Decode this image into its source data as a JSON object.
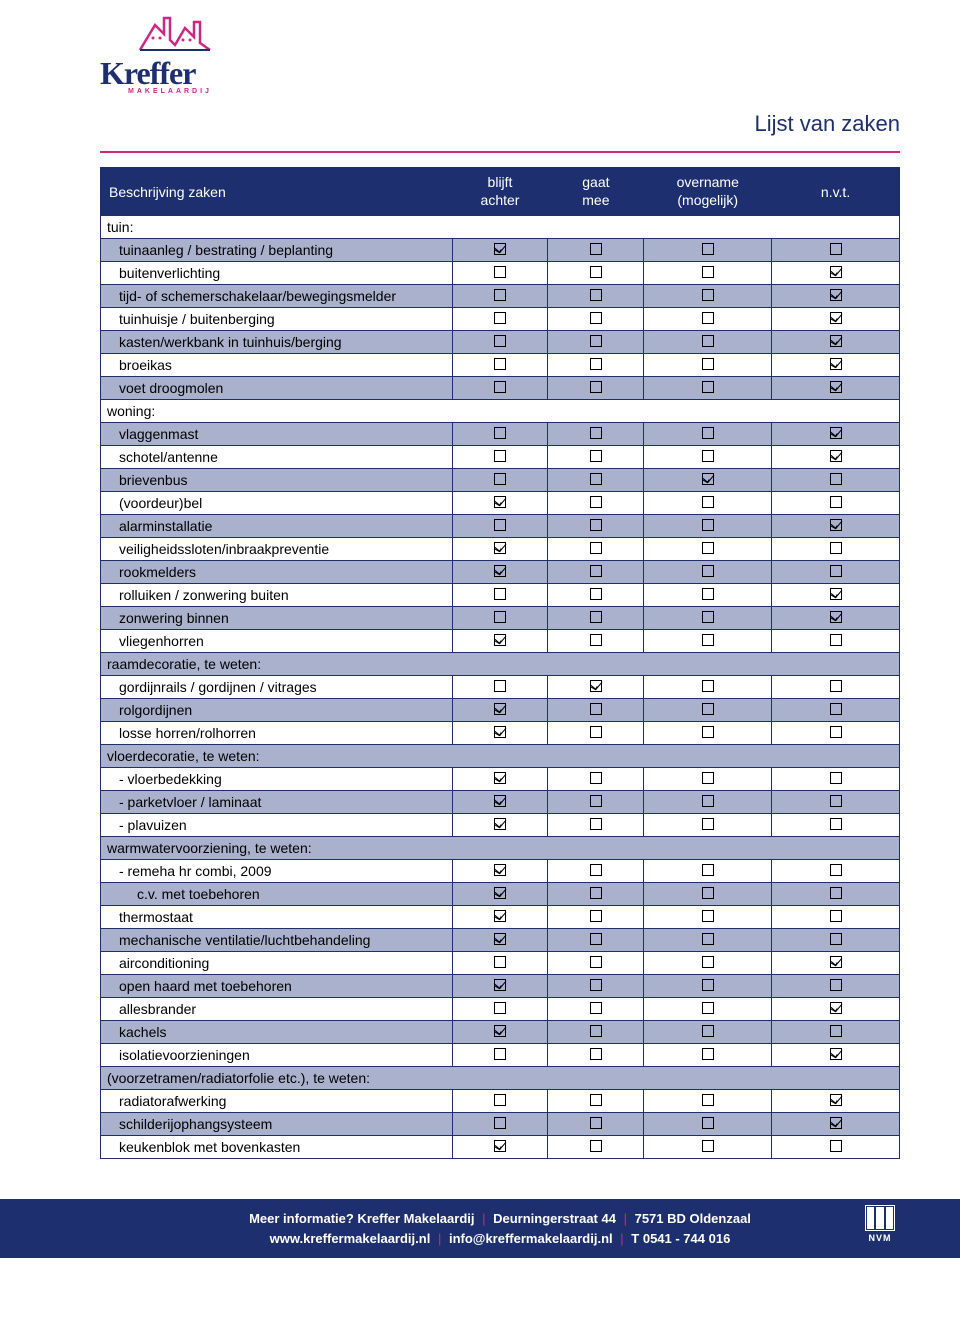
{
  "logo": {
    "name": "Kreffer",
    "sub": "MAKELAARDIJ"
  },
  "page_title": "Lijst van zaken",
  "colors": {
    "navy": "#1e2f6f",
    "magenta": "#ce2783",
    "bluegrey": "#a9b1cc",
    "white": "#ffffff"
  },
  "table": {
    "headers": {
      "desc": "Beschrijving zaken",
      "c1a": "blijft",
      "c1b": "achter",
      "c2a": "gaat",
      "c2b": "mee",
      "c3a": "overname",
      "c3b": "(mogelijk)",
      "c4": "n.v.t."
    },
    "rows": [
      {
        "type": "cat",
        "label": "tuin:",
        "shade": "w"
      },
      {
        "type": "item",
        "label": "tuinaanleg / bestrating / beplanting",
        "shade": "b",
        "v": [
          "x",
          "o",
          "o",
          "o"
        ]
      },
      {
        "type": "item",
        "label": "buitenverlichting",
        "shade": "w",
        "v": [
          "o",
          "o",
          "o",
          "x"
        ]
      },
      {
        "type": "item",
        "label": "tijd- of schemerschakelaar/bewegingsmelder",
        "shade": "b",
        "v": [
          "o",
          "o",
          "o",
          "x"
        ]
      },
      {
        "type": "item",
        "label": "tuinhuisje / buitenberging",
        "shade": "w",
        "v": [
          "o",
          "o",
          "o",
          "x"
        ]
      },
      {
        "type": "item",
        "label": "kasten/werkbank in tuinhuis/berging",
        "shade": "b",
        "v": [
          "o",
          "o",
          "o",
          "x"
        ]
      },
      {
        "type": "item",
        "label": "broeikas",
        "shade": "w",
        "v": [
          "o",
          "o",
          "o",
          "x"
        ]
      },
      {
        "type": "item",
        "label": "voet droogmolen",
        "shade": "b",
        "v": [
          "o",
          "o",
          "o",
          "x"
        ]
      },
      {
        "type": "cat",
        "label": "woning:",
        "shade": "w"
      },
      {
        "type": "item",
        "label": "vlaggenmast",
        "shade": "b",
        "v": [
          "o",
          "o",
          "o",
          "x"
        ]
      },
      {
        "type": "item",
        "label": "schotel/antenne",
        "shade": "w",
        "v": [
          "o",
          "o",
          "o",
          "x"
        ]
      },
      {
        "type": "item",
        "label": "brievenbus",
        "shade": "b",
        "v": [
          "o",
          "o",
          "x",
          "o"
        ]
      },
      {
        "type": "item",
        "label": "(voordeur)bel",
        "shade": "w",
        "v": [
          "x",
          "o",
          "o",
          "o"
        ]
      },
      {
        "type": "item",
        "label": "alarminstallatie",
        "shade": "b",
        "v": [
          "o",
          "o",
          "o",
          "x"
        ]
      },
      {
        "type": "item",
        "label": "veiligheidssloten/inbraakpreventie",
        "shade": "w",
        "v": [
          "x",
          "o",
          "o",
          "o"
        ]
      },
      {
        "type": "item",
        "label": "rookmelders",
        "shade": "b",
        "v": [
          "x",
          "o",
          "o",
          "o"
        ]
      },
      {
        "type": "item",
        "label": "rolluiken / zonwering buiten",
        "shade": "w",
        "v": [
          "o",
          "o",
          "o",
          "x"
        ]
      },
      {
        "type": "item",
        "label": "zonwering binnen",
        "shade": "b",
        "v": [
          "o",
          "o",
          "o",
          "x"
        ]
      },
      {
        "type": "item",
        "label": "vliegenhorren",
        "shade": "w",
        "v": [
          "x",
          "o",
          "o",
          "o"
        ]
      },
      {
        "type": "cat",
        "label": "raamdecoratie, te weten:",
        "shade": "b"
      },
      {
        "type": "item",
        "label": "gordijnrails / gordijnen / vitrages",
        "shade": "w",
        "v": [
          "o",
          "x",
          "o",
          "o"
        ]
      },
      {
        "type": "item",
        "label": "rolgordijnen",
        "shade": "b",
        "v": [
          "x",
          "o",
          "o",
          "o"
        ]
      },
      {
        "type": "item",
        "label": "losse horren/rolhorren",
        "shade": "w",
        "v": [
          "x",
          "o",
          "o",
          "o"
        ]
      },
      {
        "type": "cat",
        "label": "vloerdecoratie, te weten:",
        "shade": "b"
      },
      {
        "type": "item",
        "label": "- vloerbedekking",
        "shade": "w",
        "v": [
          "x",
          "o",
          "o",
          "o"
        ]
      },
      {
        "type": "item",
        "label": "- parketvloer / laminaat",
        "shade": "b",
        "v": [
          "x",
          "o",
          "o",
          "o"
        ]
      },
      {
        "type": "item",
        "label": "- plavuizen",
        "shade": "w",
        "v": [
          "x",
          "o",
          "o",
          "o"
        ]
      },
      {
        "type": "cat",
        "label": "warmwatervoorziening, te weten:",
        "shade": "b"
      },
      {
        "type": "item",
        "label": "- remeha hr combi, 2009",
        "shade": "w",
        "v": [
          "x",
          "o",
          "o",
          "o"
        ]
      },
      {
        "type": "item",
        "sub": true,
        "label": "c.v. met toebehoren",
        "shade": "b",
        "v": [
          "x",
          "o",
          "o",
          "o"
        ]
      },
      {
        "type": "item",
        "label": "thermostaat",
        "shade": "w",
        "v": [
          "x",
          "o",
          "o",
          "o"
        ]
      },
      {
        "type": "item",
        "label": "mechanische ventilatie/luchtbehandeling",
        "shade": "b",
        "v": [
          "x",
          "o",
          "o",
          "o"
        ]
      },
      {
        "type": "item",
        "label": "airconditioning",
        "shade": "w",
        "v": [
          "o",
          "o",
          "o",
          "x"
        ]
      },
      {
        "type": "item",
        "label": "open haard met toebehoren",
        "shade": "b",
        "v": [
          "x",
          "o",
          "o",
          "o"
        ]
      },
      {
        "type": "item",
        "label": "allesbrander",
        "shade": "w",
        "v": [
          "o",
          "o",
          "o",
          "x"
        ]
      },
      {
        "type": "item",
        "label": "kachels",
        "shade": "b",
        "v": [
          "x",
          "o",
          "o",
          "o"
        ]
      },
      {
        "type": "item",
        "label": "isolatievoorzieningen",
        "shade": "w",
        "v": [
          "o",
          "o",
          "o",
          "x"
        ]
      },
      {
        "type": "cat",
        "label": "(voorzetramen/radiatorfolie etc.), te weten:",
        "shade": "b"
      },
      {
        "type": "item",
        "label": "radiatorafwerking",
        "shade": "w",
        "v": [
          "o",
          "o",
          "o",
          "x"
        ]
      },
      {
        "type": "item",
        "label": "schilderijophangsysteem",
        "shade": "b",
        "v": [
          "o",
          "o",
          "o",
          "x"
        ]
      },
      {
        "type": "item",
        "label": "keukenblok met bovenkasten",
        "shade": "w",
        "v": [
          "x",
          "o",
          "o",
          "o"
        ]
      }
    ]
  },
  "footer": {
    "l1a": "Meer informatie? Kreffer Makelaardij",
    "l1b": "Deurningerstraat 44",
    "l1c": "7571 BD Oldenzaal",
    "l2a": "www.kreffermakelaardij.nl",
    "l2b": "info@kreffermakelaardij.nl",
    "l2c": "T 0541 - 744 016",
    "nvm": "NVM"
  }
}
